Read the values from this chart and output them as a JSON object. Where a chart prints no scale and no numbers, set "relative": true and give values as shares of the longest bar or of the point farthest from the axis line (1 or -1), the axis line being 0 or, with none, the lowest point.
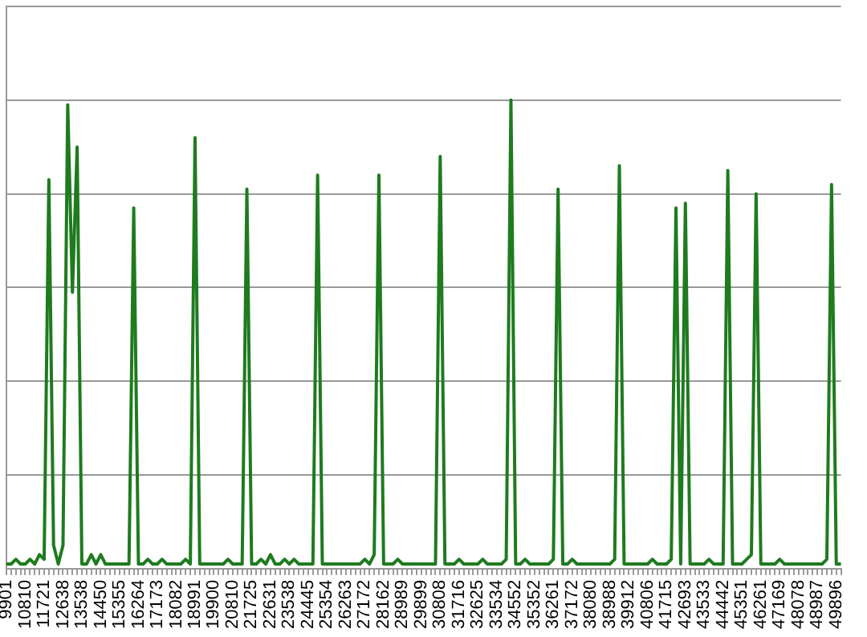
{
  "chart_data": {
    "type": "line",
    "relative": true,
    "grid": "y",
    "legend": false,
    "marker": "none",
    "line_style": "solid",
    "categories": [
      "9901",
      null,
      null,
      null,
      "10810",
      null,
      null,
      null,
      "11721",
      null,
      null,
      null,
      "12638",
      null,
      null,
      null,
      "13538",
      null,
      null,
      null,
      "14450",
      null,
      null,
      null,
      "15355",
      null,
      null,
      null,
      "16264",
      null,
      null,
      null,
      "17173",
      null,
      null,
      null,
      "18082",
      null,
      null,
      null,
      "18991",
      null,
      null,
      null,
      "19900",
      null,
      null,
      null,
      "20810",
      null,
      null,
      null,
      "21725",
      null,
      null,
      null,
      "22631",
      null,
      null,
      null,
      "23538",
      null,
      null,
      null,
      "24445",
      null,
      null,
      null,
      "25354",
      null,
      null,
      null,
      "26263",
      null,
      null,
      null,
      "27172",
      null,
      null,
      null,
      "28162",
      null,
      null,
      null,
      "28989",
      null,
      null,
      null,
      "29899",
      null,
      null,
      null,
      "30808",
      null,
      null,
      null,
      "31716",
      null,
      null,
      null,
      "32625",
      null,
      null,
      null,
      "33534",
      null,
      null,
      null,
      "34552",
      null,
      null,
      null,
      "35352",
      null,
      null,
      null,
      "36261",
      null,
      null,
      null,
      "37172",
      null,
      null,
      null,
      "38080",
      null,
      null,
      null,
      "38988",
      null,
      null,
      null,
      "39912",
      null,
      null,
      null,
      "40806",
      null,
      null,
      null,
      "41715",
      null,
      null,
      null,
      "42693",
      null,
      null,
      null,
      "43533",
      null,
      null,
      null,
      "44442",
      null,
      null,
      null,
      "45351",
      null,
      null,
      null,
      "46261",
      null,
      null,
      null,
      "47169",
      null,
      null,
      null,
      "48078",
      null,
      null,
      null,
      "48987",
      null,
      null,
      null,
      "49896",
      null
    ],
    "series": [
      {
        "color": "#1e7b1e",
        "values": [
          0.01,
          0.01,
          0.02,
          0.01,
          0.01,
          0.02,
          0.01,
          0.03,
          0.02,
          0.83,
          0.05,
          0.01,
          0.05,
          0.99,
          0.59,
          0.9,
          0.01,
          0.01,
          0.03,
          0.01,
          0.03,
          0.01,
          0.01,
          0.01,
          0.01,
          0.01,
          0.01,
          0.77,
          0.01,
          0.01,
          0.02,
          0.01,
          0.01,
          0.02,
          0.01,
          0.01,
          0.01,
          0.01,
          0.02,
          0.01,
          0.92,
          0.01,
          0.01,
          0.01,
          0.01,
          0.01,
          0.01,
          0.02,
          0.01,
          0.01,
          0.01,
          0.81,
          0.01,
          0.01,
          0.02,
          0.01,
          0.03,
          0.01,
          0.01,
          0.02,
          0.01,
          0.02,
          0.01,
          0.01,
          0.01,
          0.01,
          0.84,
          0.01,
          0.01,
          0.01,
          0.01,
          0.01,
          0.01,
          0.01,
          0.01,
          0.01,
          0.02,
          0.01,
          0.03,
          0.84,
          0.01,
          0.01,
          0.01,
          0.02,
          0.01,
          0.01,
          0.01,
          0.01,
          0.01,
          0.01,
          0.01,
          0.01,
          0.88,
          0.01,
          0.01,
          0.01,
          0.02,
          0.01,
          0.01,
          0.01,
          0.01,
          0.02,
          0.01,
          0.01,
          0.01,
          0.01,
          0.02,
          1,
          0.01,
          0.01,
          0.02,
          0.01,
          0.01,
          0.01,
          0.01,
          0.01,
          0.02,
          0.81,
          0.01,
          0.01,
          0.02,
          0.01,
          0.01,
          0.01,
          0.01,
          0.01,
          0.01,
          0.01,
          0.01,
          0.02,
          0.86,
          0.01,
          0.01,
          0.01,
          0.01,
          0.01,
          0.01,
          0.02,
          0.01,
          0.01,
          0.01,
          0.02,
          0.77,
          0.01,
          0.78,
          0.01,
          0.01,
          0.01,
          0.01,
          0.02,
          0.01,
          0.01,
          0.01,
          0.85,
          0.01,
          0.01,
          0.01,
          0.02,
          0.03,
          0.8,
          0.01,
          0.01,
          0.01,
          0.01,
          0.02,
          0.01,
          0.01,
          0.01,
          0.01,
          0.01,
          0.01,
          0.01,
          0.01,
          0.01,
          0.02,
          0.82,
          0.01,
          0.01
        ]
      }
    ]
  }
}
